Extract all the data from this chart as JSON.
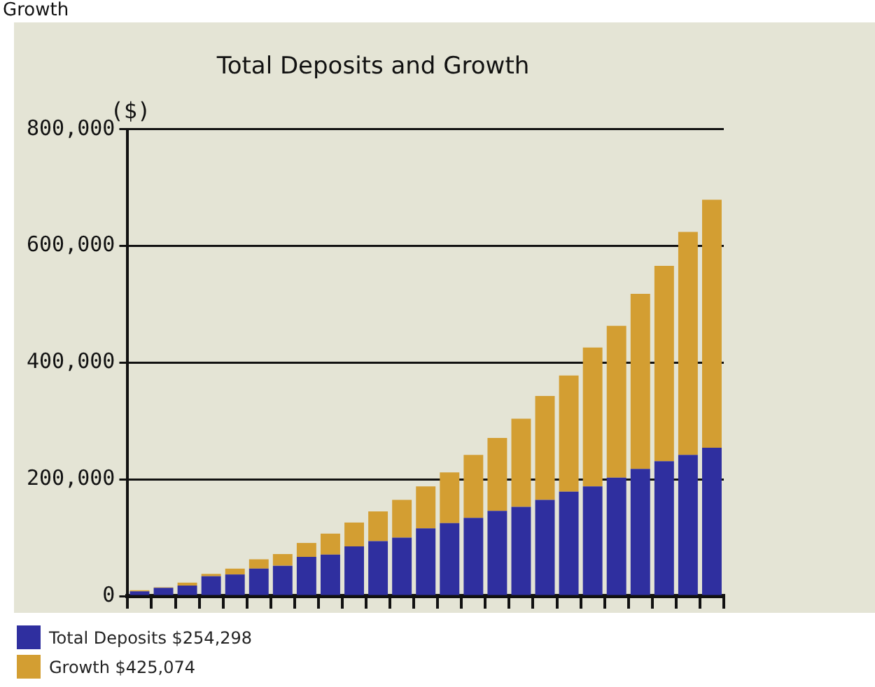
{
  "chart_data": {
    "type": "bar",
    "title": "Total Deposits and Growth",
    "ylabel": "($)",
    "annotations": [
      "Growth"
    ],
    "categories": [
      null,
      null,
      null,
      null,
      null,
      null,
      null,
      null,
      null,
      null,
      null,
      null,
      null,
      null,
      null,
      null,
      null,
      null,
      null,
      null,
      null,
      null,
      null,
      null,
      null
    ],
    "stacked": true,
    "series": [
      {
        "name": "Total Deposits $254,298",
        "color": "#2f2f9f",
        "values": [
          8000,
          14000,
          18000,
          34000,
          37000,
          47000,
          52000,
          67000,
          71000,
          85000,
          94000,
          100000,
          116000,
          125000,
          134000,
          146000,
          153000,
          165000,
          179000,
          188000,
          203000,
          218000,
          231000,
          242000,
          254298
        ]
      },
      {
        "name": "Growth $425,074",
        "color": "#d39e32",
        "values": [
          2000,
          1000,
          5000,
          4000,
          10000,
          16000,
          20000,
          24000,
          36000,
          41000,
          51000,
          65000,
          72000,
          87000,
          108000,
          125000,
          151000,
          178000,
          199000,
          238000,
          260000,
          300000,
          335000,
          382000,
          425074
        ]
      }
    ],
    "ylim": [
      0,
      800000
    ],
    "yticks": [
      0,
      {
        "value": 200000,
        "label": "200,000"
      },
      {
        "value": 400000,
        "label": "400,000"
      },
      {
        "value": 600000,
        "label": "600,000"
      },
      {
        "value": 800000,
        "label": "800,000"
      }
    ],
    "grid": "y",
    "legend": "bottom",
    "tick_labels": "y"
  }
}
